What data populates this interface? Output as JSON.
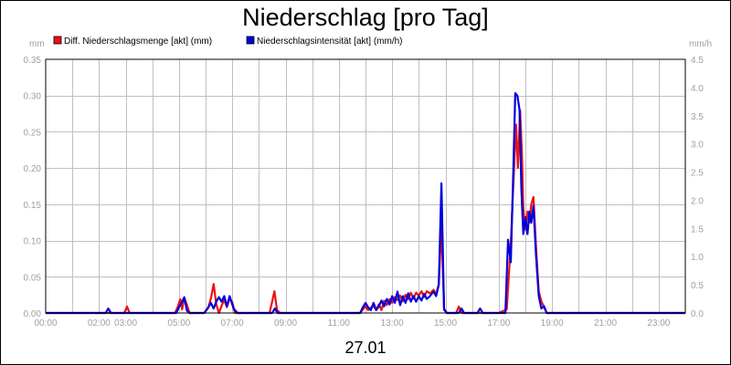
{
  "chart_data": {
    "type": "line",
    "title": "Niederschlag [pro Tag]",
    "xlabel": "27.01",
    "left_unit": "mm",
    "right_unit": "mm/h",
    "grid": true,
    "legend_position": "top-left",
    "x_ticks": [
      "00:00",
      "02:00",
      "03:00",
      "05:00",
      "07:00",
      "09:00",
      "11:00",
      "13:00",
      "15:00",
      "17:00",
      "19:00",
      "21:00",
      "23:00"
    ],
    "y_left_ticks": [
      "0.00",
      "0.05",
      "0.10",
      "0.15",
      "0.20",
      "0.25",
      "0.30",
      "0.35"
    ],
    "y_right_ticks": [
      "0.0",
      "0.5",
      "1.0",
      "1.5",
      "2.0",
      "2.5",
      "3.0",
      "3.5",
      "4.0",
      "4.5"
    ],
    "ylim_left": [
      0,
      0.35
    ],
    "ylim_right": [
      0,
      4.5
    ],
    "xlim_hours": [
      0,
      24
    ],
    "series": [
      {
        "name": "Diff. Niederschlagsmenge [akt] (mm)",
        "color": "#ee1111",
        "axis": "left",
        "points": [
          [
            0,
            0
          ],
          [
            2.95,
            0
          ],
          [
            3.05,
            0.009
          ],
          [
            3.15,
            0
          ],
          [
            4.85,
            0
          ],
          [
            4.95,
            0.008
          ],
          [
            5.05,
            0.019
          ],
          [
            5.12,
            0.005
          ],
          [
            5.2,
            0.021
          ],
          [
            5.3,
            0.011
          ],
          [
            5.4,
            0
          ],
          [
            5.95,
            0
          ],
          [
            6.1,
            0.007
          ],
          [
            6.2,
            0.02
          ],
          [
            6.3,
            0.04
          ],
          [
            6.4,
            0.012
          ],
          [
            6.5,
            0
          ],
          [
            6.6,
            0.01
          ],
          [
            6.7,
            0.018
          ],
          [
            6.8,
            0.008
          ],
          [
            6.9,
            0.02
          ],
          [
            7.0,
            0.015
          ],
          [
            7.1,
            0
          ],
          [
            8.4,
            0
          ],
          [
            8.5,
            0.016
          ],
          [
            8.58,
            0.03
          ],
          [
            8.68,
            0.004
          ],
          [
            8.8,
            0
          ],
          [
            11.8,
            0
          ],
          [
            11.9,
            0.005
          ],
          [
            12.0,
            0.009
          ],
          [
            12.1,
            0.004
          ],
          [
            12.2,
            0.007
          ],
          [
            12.3,
            0.01
          ],
          [
            12.4,
            0.004
          ],
          [
            12.5,
            0.012
          ],
          [
            12.6,
            0.004
          ],
          [
            12.7,
            0.017
          ],
          [
            12.8,
            0.011
          ],
          [
            12.9,
            0.019
          ],
          [
            13.0,
            0.014
          ],
          [
            13.1,
            0.022
          ],
          [
            13.2,
            0.018
          ],
          [
            13.3,
            0.024
          ],
          [
            13.4,
            0.016
          ],
          [
            13.5,
            0.025
          ],
          [
            13.6,
            0.019
          ],
          [
            13.7,
            0.028
          ],
          [
            13.8,
            0.02
          ],
          [
            13.9,
            0.028
          ],
          [
            14.0,
            0.024
          ],
          [
            14.1,
            0.03
          ],
          [
            14.2,
            0.022
          ],
          [
            14.3,
            0.03
          ],
          [
            14.42,
            0.027
          ],
          [
            14.55,
            0.032
          ],
          [
            14.65,
            0.026
          ],
          [
            14.75,
            0.04
          ],
          [
            14.85,
            0.12
          ],
          [
            14.95,
            0.006
          ],
          [
            15.05,
            0
          ],
          [
            15.4,
            0
          ],
          [
            15.5,
            0.009
          ],
          [
            15.6,
            0
          ],
          [
            17.0,
            0
          ],
          [
            17.3,
            0.005
          ],
          [
            17.45,
            0.095
          ],
          [
            17.55,
            0.18
          ],
          [
            17.65,
            0.26
          ],
          [
            17.72,
            0.2
          ],
          [
            17.8,
            0.28
          ],
          [
            17.87,
            0.22
          ],
          [
            17.92,
            0.145
          ],
          [
            18.0,
            0.115
          ],
          [
            18.08,
            0.14
          ],
          [
            18.15,
            0.125
          ],
          [
            18.22,
            0.15
          ],
          [
            18.3,
            0.16
          ],
          [
            18.4,
            0.09
          ],
          [
            18.5,
            0.03
          ],
          [
            18.6,
            0.016
          ],
          [
            18.7,
            0.008
          ],
          [
            18.8,
            0
          ],
          [
            24,
            0
          ]
        ]
      },
      {
        "name": "Niederschlagsintensität [akt] (mm/h)",
        "color": "#0000dd",
        "axis": "right",
        "points": [
          [
            0,
            0
          ],
          [
            2.25,
            0
          ],
          [
            2.35,
            0.08
          ],
          [
            2.45,
            0
          ],
          [
            4.9,
            0
          ],
          [
            5.0,
            0.1
          ],
          [
            5.12,
            0.2
          ],
          [
            5.2,
            0.28
          ],
          [
            5.3,
            0.04
          ],
          [
            5.4,
            0
          ],
          [
            5.95,
            0
          ],
          [
            6.1,
            0.1
          ],
          [
            6.2,
            0.18
          ],
          [
            6.3,
            0.08
          ],
          [
            6.4,
            0.2
          ],
          [
            6.5,
            0.28
          ],
          [
            6.6,
            0.2
          ],
          [
            6.7,
            0.3
          ],
          [
            6.8,
            0.12
          ],
          [
            6.9,
            0.3
          ],
          [
            7.05,
            0.08
          ],
          [
            7.2,
            0
          ],
          [
            8.5,
            0
          ],
          [
            8.6,
            0.08
          ],
          [
            8.7,
            0
          ],
          [
            11.8,
            0
          ],
          [
            11.9,
            0.1
          ],
          [
            12.0,
            0.18
          ],
          [
            12.1,
            0.1
          ],
          [
            12.2,
            0.05
          ],
          [
            12.3,
            0.18
          ],
          [
            12.4,
            0.05
          ],
          [
            12.5,
            0.12
          ],
          [
            12.6,
            0.22
          ],
          [
            12.7,
            0.12
          ],
          [
            12.8,
            0.25
          ],
          [
            12.9,
            0.15
          ],
          [
            13.0,
            0.3
          ],
          [
            13.1,
            0.18
          ],
          [
            13.2,
            0.38
          ],
          [
            13.3,
            0.14
          ],
          [
            13.4,
            0.3
          ],
          [
            13.5,
            0.18
          ],
          [
            13.6,
            0.35
          ],
          [
            13.7,
            0.2
          ],
          [
            13.8,
            0.3
          ],
          [
            13.9,
            0.2
          ],
          [
            14.0,
            0.3
          ],
          [
            14.1,
            0.22
          ],
          [
            14.2,
            0.34
          ],
          [
            14.3,
            0.25
          ],
          [
            14.42,
            0.3
          ],
          [
            14.55,
            0.38
          ],
          [
            14.65,
            0.3
          ],
          [
            14.75,
            0.5
          ],
          [
            14.85,
            2.3
          ],
          [
            14.95,
            0.06
          ],
          [
            15.05,
            0
          ],
          [
            15.5,
            0
          ],
          [
            15.6,
            0.08
          ],
          [
            15.7,
            0
          ],
          [
            16.2,
            0
          ],
          [
            16.3,
            0.08
          ],
          [
            16.4,
            0
          ],
          [
            17.25,
            0
          ],
          [
            17.35,
            1.3
          ],
          [
            17.45,
            0.9
          ],
          [
            17.55,
            2.6
          ],
          [
            17.62,
            3.9
          ],
          [
            17.7,
            3.85
          ],
          [
            17.78,
            3.6
          ],
          [
            17.85,
            2.2
          ],
          [
            17.92,
            1.4
          ],
          [
            18.0,
            1.7
          ],
          [
            18.08,
            1.4
          ],
          [
            18.15,
            1.8
          ],
          [
            18.22,
            1.6
          ],
          [
            18.3,
            1.9
          ],
          [
            18.4,
            1.0
          ],
          [
            18.5,
            0.3
          ],
          [
            18.6,
            0.08
          ],
          [
            18.7,
            0.12
          ],
          [
            18.8,
            0
          ],
          [
            24,
            0
          ]
        ]
      }
    ]
  }
}
